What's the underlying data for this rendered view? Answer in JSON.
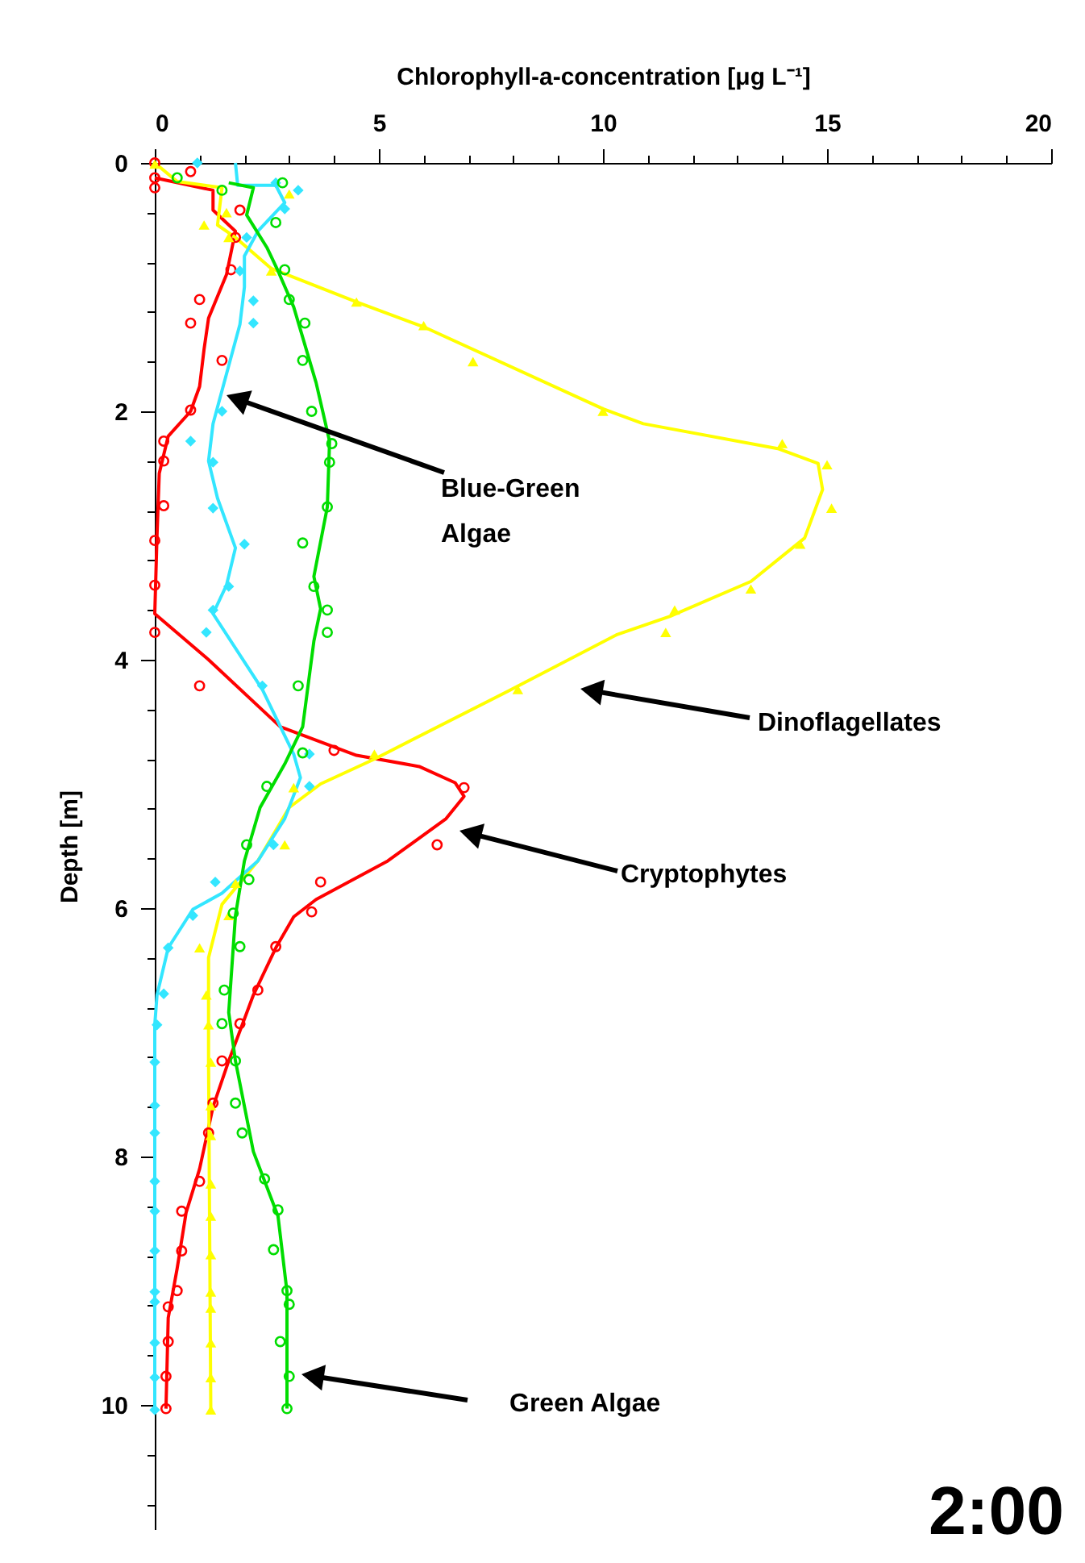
{
  "chart_data": {
    "type": "line",
    "xlabel": "Chlorophyll-a-concentration [μg L⁻¹]",
    "ylabel": "Depth [m]",
    "xlim": [
      0,
      20
    ],
    "ylim": [
      11,
      0
    ],
    "xticks": [
      0,
      {
        "value": 1,
        "label": null
      },
      {
        "value": 2,
        "label": null
      },
      {
        "value": 3,
        "label": null
      },
      {
        "value": 4,
        "label": null
      },
      5,
      {
        "value": 6,
        "label": null
      },
      {
        "value": 7,
        "label": null
      },
      {
        "value": 8,
        "label": null
      },
      {
        "value": 9,
        "label": null
      },
      10,
      {
        "value": 11,
        "label": null
      },
      {
        "value": 12,
        "label": null
      },
      {
        "value": 13,
        "label": null
      },
      {
        "value": 14,
        "label": null
      },
      15,
      {
        "value": 16,
        "label": null
      },
      {
        "value": 17,
        "label": null
      },
      {
        "value": 18,
        "label": null
      },
      {
        "value": 19,
        "label": null
      },
      20
    ],
    "yticks": [
      0,
      {
        "value": 0.4,
        "label": null
      },
      {
        "value": 0.8,
        "label": null
      },
      {
        "value": 1.2,
        "label": null
      },
      {
        "value": 1.6,
        "label": null
      },
      2,
      {
        "value": 2.4,
        "label": null
      },
      {
        "value": 2.8,
        "label": null
      },
      {
        "value": 3.2,
        "label": null
      },
      {
        "value": 3.6,
        "label": null
      },
      4,
      {
        "value": 4.4,
        "label": null
      },
      {
        "value": 4.8,
        "label": null
      },
      {
        "value": 5.2,
        "label": null
      },
      {
        "value": 5.6,
        "label": null
      },
      6,
      {
        "value": 6.4,
        "label": null
      },
      {
        "value": 6.8,
        "label": null
      },
      {
        "value": 7.2,
        "label": null
      },
      {
        "value": 7.6,
        "label": null
      },
      8,
      {
        "value": 8.4,
        "label": null
      },
      {
        "value": 8.8,
        "label": null
      },
      {
        "value": 9.2,
        "label": null
      },
      {
        "value": 9.6,
        "label": null
      },
      10,
      {
        "value": 10.4,
        "label": null
      },
      {
        "value": 10.8,
        "label": null
      }
    ],
    "grid": false,
    "line_style": "solid",
    "series": [
      {
        "color": "#ff0000",
        "x": [
          0,
          1.3,
          1.3,
          1.8,
          1.6,
          1.2,
          1.1,
          1.0,
          0.8,
          0.3,
          0.1,
          0.05,
          0,
          1.2,
          2.8,
          4.5,
          5.9,
          6.7,
          6.9,
          6.5,
          5.2,
          3.6,
          3.1,
          2.7,
          2.2,
          1.65,
          1.3,
          1.0,
          0.7,
          0.5,
          0.3,
          0.25
        ],
        "values": [
          0.12,
          0.22,
          0.38,
          0.55,
          0.9,
          1.25,
          1.5,
          1.8,
          2.0,
          2.2,
          2.5,
          3.0,
          3.63,
          4.0,
          4.54,
          4.77,
          4.86,
          4.99,
          5.1,
          5.28,
          5.62,
          5.93,
          6.07,
          6.32,
          6.7,
          7.23,
          7.6,
          8.1,
          8.45,
          8.9,
          9.3,
          10.03
        ]
      },
      {
        "color": "#ffff00",
        "x": [
          0,
          0.5,
          1.5,
          1.4,
          1.8,
          2.6,
          4.5,
          6.0,
          10.0,
          10.9,
          13.9,
          14.8,
          14.9,
          14.5,
          13.3,
          11.5,
          10.3,
          7.9,
          4.9,
          3.7,
          3.0,
          2.3,
          1.5,
          1.2,
          1.2,
          1.25
        ],
        "values": [
          0.0,
          0.15,
          0.2,
          0.5,
          0.6,
          0.85,
          1.12,
          1.32,
          1.98,
          2.1,
          2.3,
          2.42,
          2.63,
          3.02,
          3.37,
          3.65,
          3.8,
          4.25,
          4.8,
          5.0,
          5.19,
          5.62,
          5.97,
          6.4,
          7.23,
          10.04
        ]
      },
      {
        "color": "#33e6ff",
        "x": [
          1.8,
          1.85,
          2.7,
          2.9,
          2.3,
          2.0,
          2.0,
          1.9,
          1.6,
          1.3,
          1.2,
          1.4,
          1.8,
          1.6,
          1.3,
          2.4,
          3.1,
          3.25,
          2.9,
          2.3,
          1.5,
          0.85,
          0.3,
          0.05,
          0,
          0
        ],
        "values": [
          0,
          0.18,
          0.18,
          0.32,
          0.55,
          0.75,
          1.0,
          1.3,
          1.7,
          2.1,
          2.4,
          2.7,
          3.1,
          3.4,
          3.63,
          4.24,
          4.76,
          4.95,
          5.28,
          5.62,
          5.88,
          6.01,
          6.32,
          6.7,
          6.94,
          10.04
        ]
      },
      {
        "color": "#00dd00",
        "x": [
          1.65,
          2.2,
          2.05,
          2.5,
          2.75,
          3.1,
          3.6,
          3.9,
          3.85,
          3.55,
          3.7,
          3.55,
          3.3,
          2.9,
          2.35,
          2.0,
          1.8,
          1.65,
          1.8,
          2.2,
          2.75,
          2.95,
          2.95
        ],
        "values": [
          0.16,
          0.2,
          0.42,
          0.68,
          0.87,
          1.16,
          1.77,
          2.24,
          2.77,
          3.33,
          3.59,
          3.85,
          4.54,
          4.84,
          5.19,
          5.62,
          6.06,
          6.84,
          7.23,
          7.96,
          8.48,
          9.09,
          10.03
        ]
      },
      {
        "type": "scatter",
        "color": "#ff0000",
        "marker": "circle",
        "x": [
          0,
          0,
          0,
          0.8,
          1.9,
          1.8,
          1.7,
          1.0,
          0.8,
          1.5,
          0.8,
          0.2,
          0.2,
          0.2,
          0,
          0,
          0,
          1.0,
          4.0,
          6.9,
          6.3,
          3.7,
          3.5,
          2.7,
          2.3,
          1.9,
          1.5,
          1.3,
          1.2,
          1.0,
          0.6,
          0.6,
          0.5,
          0.3,
          0.3,
          0.25,
          0.25
        ],
        "values": [
          0,
          0.12,
          0.2,
          0.07,
          0.38,
          0.6,
          0.86,
          1.1,
          1.29,
          1.59,
          1.99,
          2.24,
          2.4,
          2.76,
          3.04,
          3.4,
          3.78,
          4.21,
          4.73,
          5.03,
          5.49,
          5.79,
          6.03,
          6.31,
          6.66,
          6.93,
          7.23,
          7.57,
          7.81,
          8.2,
          8.44,
          8.76,
          9.08,
          9.21,
          9.49,
          9.77,
          10.03
        ]
      },
      {
        "type": "scatter",
        "color": "#ffff00",
        "marker": "triangle",
        "x": [
          0,
          3.0,
          1.1,
          1.6,
          1.65,
          2.6,
          4.5,
          6.0,
          7.1,
          10.0,
          14.0,
          15.0,
          15.1,
          14.4,
          13.3,
          11.6,
          11.4,
          8.1,
          4.9,
          3.1,
          2.9,
          1.8,
          1.65,
          1.0,
          1.15,
          1.2,
          1.25,
          1.25,
          1.25,
          1.25,
          1.25,
          1.25,
          1.25,
          1.25,
          1.25,
          1.25,
          1.25
        ],
        "values": [
          0.01,
          0.25,
          0.5,
          0.4,
          0.6,
          0.87,
          1.12,
          1.31,
          1.6,
          2.0,
          2.26,
          2.43,
          2.78,
          3.07,
          3.43,
          3.6,
          3.78,
          4.24,
          4.76,
          5.03,
          5.49,
          5.8,
          6.06,
          6.32,
          6.7,
          6.94,
          7.24,
          7.59,
          7.83,
          8.22,
          8.48,
          8.79,
          9.09,
          9.22,
          9.5,
          9.78,
          10.04
        ]
      },
      {
        "type": "scatter",
        "color": "#33e6ff",
        "marker": "diamond",
        "x": [
          0.95,
          2.7,
          3.2,
          2.9,
          2.05,
          1.9,
          2.2,
          2.2,
          1.5,
          0.8,
          1.3,
          1.3,
          2.0,
          1.65,
          1.3,
          1.15,
          2.4,
          3.45,
          3.45,
          2.65,
          1.35,
          0.85,
          0.3,
          0.2,
          0.05,
          0,
          0,
          0,
          0,
          0,
          0,
          0,
          0,
          0,
          0,
          0
        ],
        "values": [
          0,
          0.16,
          0.22,
          0.37,
          0.6,
          0.87,
          1.11,
          1.29,
          2.0,
          2.24,
          2.41,
          2.78,
          3.07,
          3.41,
          3.6,
          3.78,
          4.21,
          4.76,
          5.02,
          5.49,
          5.79,
          6.06,
          6.32,
          6.69,
          6.94,
          7.24,
          7.59,
          7.81,
          8.2,
          8.44,
          8.76,
          9.09,
          9.17,
          9.5,
          9.78,
          10.04
        ]
      },
      {
        "type": "scatter",
        "color": "#00dd00",
        "marker": "circle",
        "x": [
          0.5,
          1.5,
          2.85,
          2.7,
          2.9,
          3.0,
          3.35,
          3.3,
          3.5,
          3.95,
          3.9,
          3.85,
          3.3,
          3.55,
          3.85,
          3.85,
          3.2,
          3.3,
          2.5,
          2.05,
          2.1,
          1.75,
          1.9,
          1.55,
          1.5,
          1.8,
          1.8,
          1.95,
          2.45,
          2.75,
          2.65,
          2.95,
          3.0,
          2.8,
          3.0,
          2.95
        ],
        "values": [
          0.12,
          0.22,
          0.16,
          0.48,
          0.86,
          1.1,
          1.29,
          1.59,
          2.0,
          2.26,
          2.41,
          2.77,
          3.06,
          3.41,
          3.6,
          3.78,
          4.21,
          4.75,
          5.02,
          5.49,
          5.77,
          6.04,
          6.31,
          6.66,
          6.93,
          7.23,
          7.57,
          7.81,
          8.18,
          8.43,
          8.75,
          9.08,
          9.19,
          9.49,
          9.77,
          10.03
        ]
      }
    ],
    "annotations": [
      {
        "text": "Blue-Green Algae",
        "x": 1.6,
        "y": 1.87
      },
      "Dinoflagellates",
      "Cryptophytes",
      "Green Algae",
      "2:00"
    ]
  }
}
